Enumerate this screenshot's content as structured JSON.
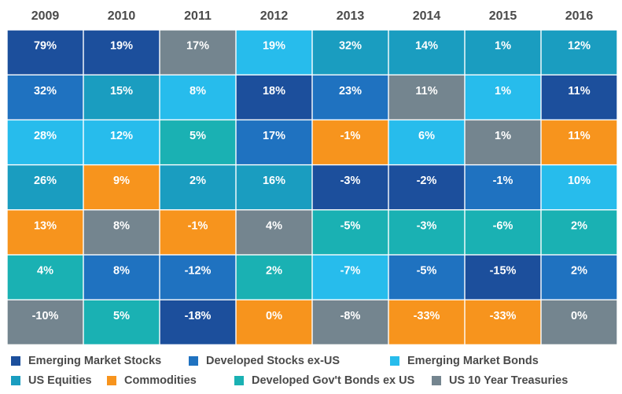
{
  "chart_data": {
    "type": "table",
    "years": [
      "2009",
      "2010",
      "2011",
      "2012",
      "2013",
      "2014",
      "2015",
      "2016"
    ],
    "colors": {
      "emerging_market_stocks": "#1c4f9c",
      "developed_stocks_ex_us": "#1f72c0",
      "emerging_market_bonds": "#27bcec",
      "us_equities": "#1a9dc0",
      "commodities": "#f7941d",
      "developed_govt_bonds_ex_us": "#1ab1b3",
      "us_10_year_treasuries": "#74858f"
    },
    "columns": [
      [
        {
          "value": "79%",
          "asset": "emerging_market_stocks"
        },
        {
          "value": "32%",
          "asset": "developed_stocks_ex_us"
        },
        {
          "value": "28%",
          "asset": "emerging_market_bonds"
        },
        {
          "value": "26%",
          "asset": "us_equities"
        },
        {
          "value": "13%",
          "asset": "commodities"
        },
        {
          "value": "4%",
          "asset": "developed_govt_bonds_ex_us"
        },
        {
          "value": "-10%",
          "asset": "us_10_year_treasuries"
        }
      ],
      [
        {
          "value": "19%",
          "asset": "emerging_market_stocks"
        },
        {
          "value": "15%",
          "asset": "us_equities"
        },
        {
          "value": "12%",
          "asset": "emerging_market_bonds"
        },
        {
          "value": "9%",
          "asset": "commodities"
        },
        {
          "value": "8%",
          "asset": "us_10_year_treasuries"
        },
        {
          "value": "8%",
          "asset": "developed_stocks_ex_us"
        },
        {
          "value": "5%",
          "asset": "developed_govt_bonds_ex_us"
        }
      ],
      [
        {
          "value": "17%",
          "asset": "us_10_year_treasuries"
        },
        {
          "value": "8%",
          "asset": "emerging_market_bonds"
        },
        {
          "value": "5%",
          "asset": "developed_govt_bonds_ex_us"
        },
        {
          "value": "2%",
          "asset": "us_equities"
        },
        {
          "value": "-1%",
          "asset": "commodities"
        },
        {
          "value": "-12%",
          "asset": "developed_stocks_ex_us"
        },
        {
          "value": "-18%",
          "asset": "emerging_market_stocks"
        }
      ],
      [
        {
          "value": "19%",
          "asset": "emerging_market_bonds"
        },
        {
          "value": "18%",
          "asset": "emerging_market_stocks"
        },
        {
          "value": "17%",
          "asset": "developed_stocks_ex_us"
        },
        {
          "value": "16%",
          "asset": "us_equities"
        },
        {
          "value": "4%",
          "asset": "us_10_year_treasuries"
        },
        {
          "value": "2%",
          "asset": "developed_govt_bonds_ex_us"
        },
        {
          "value": "0%",
          "asset": "commodities"
        }
      ],
      [
        {
          "value": "32%",
          "asset": "us_equities"
        },
        {
          "value": "23%",
          "asset": "developed_stocks_ex_us"
        },
        {
          "value": "-1%",
          "asset": "commodities"
        },
        {
          "value": "-3%",
          "asset": "emerging_market_stocks"
        },
        {
          "value": "-5%",
          "asset": "developed_govt_bonds_ex_us"
        },
        {
          "value": "-7%",
          "asset": "emerging_market_bonds"
        },
        {
          "value": "-8%",
          "asset": "us_10_year_treasuries"
        }
      ],
      [
        {
          "value": "14%",
          "asset": "us_equities"
        },
        {
          "value": "11%",
          "asset": "us_10_year_treasuries"
        },
        {
          "value": "6%",
          "asset": "emerging_market_bonds"
        },
        {
          "value": "-2%",
          "asset": "emerging_market_stocks"
        },
        {
          "value": "-3%",
          "asset": "developed_govt_bonds_ex_us"
        },
        {
          "value": "-5%",
          "asset": "developed_stocks_ex_us"
        },
        {
          "value": "-33%",
          "asset": "commodities"
        }
      ],
      [
        {
          "value": "1%",
          "asset": "us_equities"
        },
        {
          "value": "1%",
          "asset": "emerging_market_bonds"
        },
        {
          "value": "1%",
          "asset": "us_10_year_treasuries"
        },
        {
          "value": "-1%",
          "asset": "developed_stocks_ex_us"
        },
        {
          "value": "-6%",
          "asset": "developed_govt_bonds_ex_us"
        },
        {
          "value": "-15%",
          "asset": "emerging_market_stocks"
        },
        {
          "value": "-33%",
          "asset": "commodities"
        }
      ],
      [
        {
          "value": "12%",
          "asset": "us_equities"
        },
        {
          "value": "11%",
          "asset": "emerging_market_stocks"
        },
        {
          "value": "11%",
          "asset": "commodities"
        },
        {
          "value": "10%",
          "asset": "emerging_market_bonds"
        },
        {
          "value": "2%",
          "asset": "developed_govt_bonds_ex_us"
        },
        {
          "value": "2%",
          "asset": "developed_stocks_ex_us"
        },
        {
          "value": "0%",
          "asset": "us_10_year_treasuries"
        }
      ]
    ],
    "legend": {
      "rows": [
        [
          {
            "asset": "emerging_market_stocks",
            "label": "Emerging Market Stocks"
          },
          {
            "asset": "developed_stocks_ex_us",
            "label": "Developed Stocks ex-US"
          },
          {
            "asset": "emerging_market_bonds",
            "label": "Emerging Market Bonds"
          }
        ],
        [
          {
            "asset": "us_equities",
            "label": "US Equities"
          },
          {
            "asset": "commodities",
            "label": "Commodities"
          },
          {
            "asset": "developed_govt_bonds_ex_us",
            "label": "Developed Gov't Bonds ex US"
          },
          {
            "asset": "us_10_year_treasuries",
            "label": "US 10 Year Treasuries"
          }
        ]
      ]
    }
  }
}
